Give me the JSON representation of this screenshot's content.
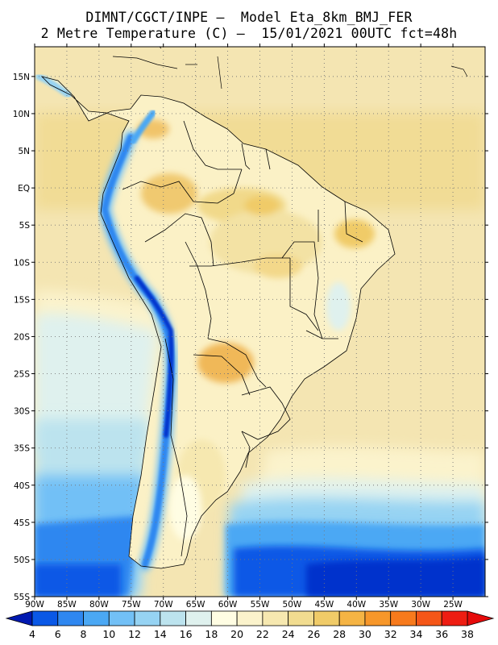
{
  "header": {
    "line1": "DIMNT/CGCT/INPE –  Model Eta_8km_BMJ_FER",
    "line2": "2 Metre Temperature (C) –  15/01/2021 00UTC fct=48h"
  },
  "map": {
    "lon_range": [
      -90,
      -20
    ],
    "lat_range": [
      -55,
      19
    ],
    "lat_labels": [
      "15N",
      "10N",
      "5N",
      "EQ",
      "5S",
      "10S",
      "15S",
      "20S",
      "25S",
      "30S",
      "35S",
      "40S",
      "45S",
      "50S",
      "55S"
    ],
    "lon_labels": [
      "90W",
      "85W",
      "80W",
      "75W",
      "70W",
      "65W",
      "60W",
      "55W",
      "50W",
      "45W",
      "40W",
      "35W",
      "30W",
      "25W"
    ]
  },
  "colorbar": {
    "labels": [
      "4",
      "6",
      "8",
      "10",
      "12",
      "14",
      "16",
      "18",
      "20",
      "22",
      "24",
      "26",
      "28",
      "30",
      "32",
      "34",
      "36",
      "38"
    ],
    "colors": [
      "#0033cc",
      "#0a58e6",
      "#2f87f0",
      "#4ba8f4",
      "#72c0f6",
      "#96d3f3",
      "#bce3ee",
      "#dff1ee",
      "#fffde3",
      "#fbf3cc",
      "#f6e8b0",
      "#f1dc90",
      "#f0cb68",
      "#f5b444",
      "#f7972a",
      "#f77a1c",
      "#f55617",
      "#ee1d12"
    ],
    "low_color": "#0019b0",
    "high_color": "#e60b0b"
  }
}
